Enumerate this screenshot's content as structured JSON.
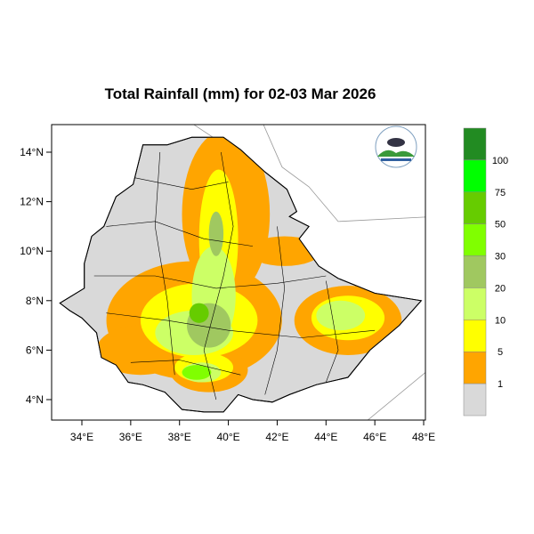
{
  "title": "Total Rainfall (mm) for 02-03 Mar 2026",
  "x_ticks": [
    "34°E",
    "36°E",
    "38°E",
    "40°E",
    "42°E",
    "44°E",
    "46°E",
    "48°E"
  ],
  "x_tick_values": [
    34,
    36,
    38,
    40,
    42,
    44,
    46,
    48
  ],
  "y_ticks": [
    "14°N",
    "12°N",
    "10°N",
    "8°N",
    "6°N",
    "4°N"
  ],
  "y_tick_values": [
    14,
    12,
    10,
    8,
    6,
    4
  ],
  "legend": {
    "labels": [
      "1",
      "5",
      "10",
      "20",
      "30",
      "50",
      "75",
      "100"
    ],
    "colors": [
      "#d9d9d9",
      "#ffa500",
      "#ffff00",
      "#ccff66",
      "#a0c860",
      "#80ff00",
      "#66cc00",
      "#00ff00",
      "#228b22"
    ]
  },
  "logo": {
    "text": "Ethiopian Meteorology Institute"
  }
}
